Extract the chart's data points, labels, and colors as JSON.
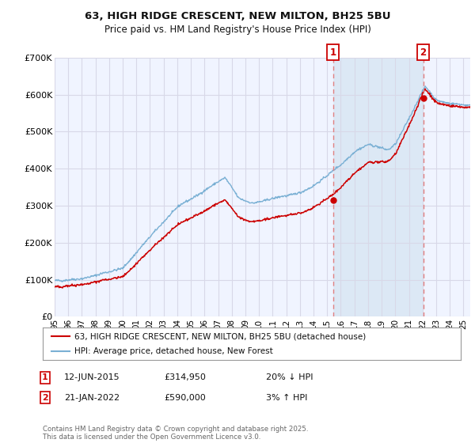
{
  "title": "63, HIGH RIDGE CRESCENT, NEW MILTON, BH25 5BU",
  "subtitle": "Price paid vs. HM Land Registry's House Price Index (HPI)",
  "background_color": "#ffffff",
  "plot_bg_color": "#f0f4ff",
  "grid_color": "#d8d8e8",
  "hpi_color": "#7ab0d4",
  "price_color": "#cc0000",
  "shade_color": "#dce8f5",
  "vline_color": "#e08080",
  "ylim": [
    0,
    700000
  ],
  "yticks": [
    0,
    100000,
    200000,
    300000,
    400000,
    500000,
    600000,
    700000
  ],
  "ytick_labels": [
    "£0",
    "£100K",
    "£200K",
    "£300K",
    "£400K",
    "£500K",
    "£600K",
    "£700K"
  ],
  "legend_label_red": "63, HIGH RIDGE CRESCENT, NEW MILTON, BH25 5BU (detached house)",
  "legend_label_blue": "HPI: Average price, detached house, New Forest",
  "annotation1_date": "12-JUN-2015",
  "annotation1_price": "£314,950",
  "annotation1_note": "20% ↓ HPI",
  "annotation2_date": "21-JAN-2022",
  "annotation2_price": "£590,000",
  "annotation2_note": "3% ↑ HPI",
  "footer": "Contains HM Land Registry data © Crown copyright and database right 2025.\nThis data is licensed under the Open Government Licence v3.0.",
  "vline1_x": 2015.44,
  "vline2_x": 2022.05,
  "sale1_x": 2015.44,
  "sale1_y": 314950,
  "sale2_x": 2022.05,
  "sale2_y": 590000,
  "xmin": 1995,
  "xmax": 2025.5
}
